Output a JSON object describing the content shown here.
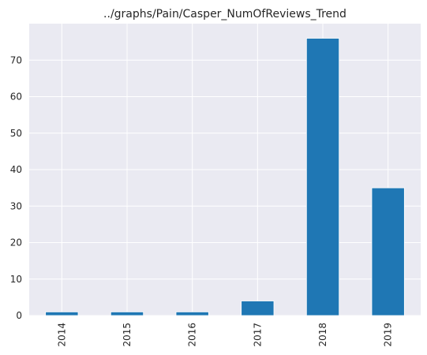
{
  "chart_data": {
    "type": "bar",
    "title": "../graphs/Pain/Casper_NumOfReviews_Trend",
    "xlabel": "",
    "ylabel": "",
    "categories": [
      "2014",
      "2015",
      "2016",
      "2017",
      "2018",
      "2019"
    ],
    "values": [
      1,
      1,
      1,
      4,
      76,
      35
    ],
    "ylim": [
      0,
      80
    ],
    "yticks": [
      0,
      10,
      20,
      30,
      40,
      50,
      60,
      70
    ],
    "grid": true,
    "legend": "none",
    "bar_color": "#1f77b4",
    "plot_background": "#eaeaf2",
    "grid_color": "#ffffff"
  }
}
